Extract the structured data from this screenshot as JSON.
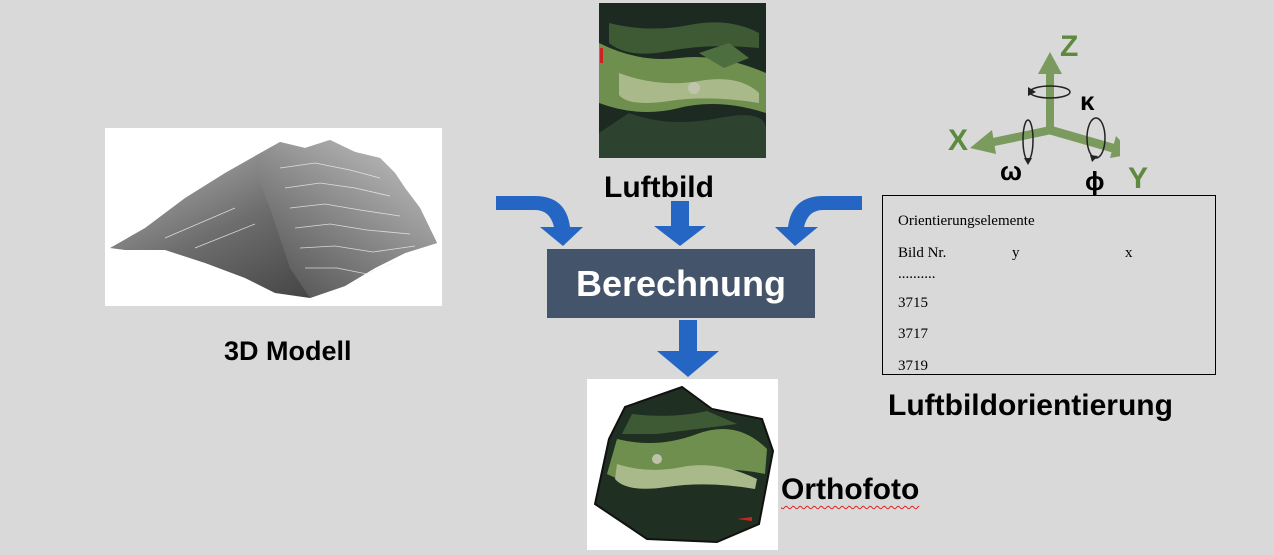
{
  "labels": {
    "model": "3D Modell",
    "aerial": "Luftbild",
    "calculation": "Berechnung",
    "ortho": "Orthofoto",
    "orientation": "Luftbildorientierung"
  },
  "axes": {
    "z": "Z",
    "x": "X",
    "y": "Y",
    "kappa": "κ",
    "omega": "ω",
    "phi": "ϕ"
  },
  "table": {
    "title": "Orientierungselemente",
    "col_bild": "Bild Nr.",
    "col_y": "y",
    "col_x": "x",
    "dots": "..........",
    "rows": [
      "3715",
      "3717",
      "3719"
    ]
  },
  "colors": {
    "arrow_blue": "#2566c4",
    "box_fill": "#44546a",
    "axis_green": "#7a9a5e",
    "axis_label_green": "#5e8a3e"
  }
}
